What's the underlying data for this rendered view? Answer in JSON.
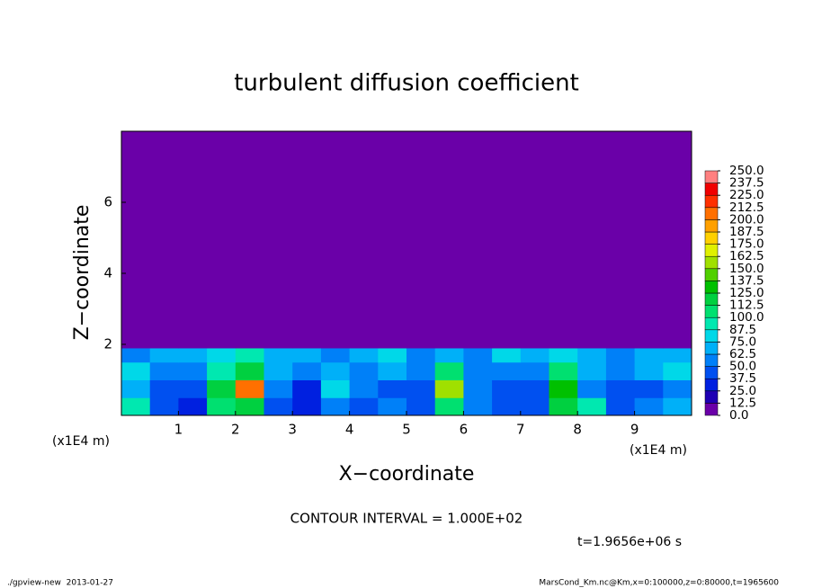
{
  "chart_data": {
    "type": "heatmap",
    "title": "turbulent diffusion coefficient",
    "xlabel": "X−coordinate",
    "ylabel": "Z−coordinate",
    "x_unit": "(x1E4 m)",
    "xlim": [
      0,
      10
    ],
    "ylim": [
      0,
      8
    ],
    "xticks": [
      1,
      2,
      3,
      4,
      5,
      6,
      7,
      8,
      9
    ],
    "yticks": [
      2,
      4,
      6
    ],
    "xbins": [
      0,
      0.5,
      1,
      1.5,
      2,
      2.5,
      3,
      3.5,
      4,
      4.5,
      5,
      5.5,
      6,
      6.5,
      7,
      7.5,
      8,
      8.5,
      9,
      9.5,
      10
    ],
    "ybins": [
      0,
      0.5,
      1,
      1.5,
      1.9,
      8
    ],
    "values": [
      [
        90,
        40,
        35,
        110,
        120,
        40,
        30,
        60,
        40,
        50,
        45,
        110,
        60,
        40,
        40,
        120,
        90,
        40,
        50,
        70
      ],
      [
        70,
        45,
        40,
        120,
        200,
        50,
        35,
        80,
        50,
        40,
        45,
        150,
        50,
        40,
        45,
        130,
        60,
        40,
        45,
        60
      ],
      [
        80,
        60,
        55,
        90,
        120,
        70,
        60,
        70,
        60,
        65,
        60,
        100,
        60,
        55,
        60,
        110,
        70,
        60,
        70,
        75
      ],
      [
        60,
        65,
        70,
        80,
        90,
        70,
        65,
        60,
        70,
        75,
        55,
        70,
        60,
        75,
        70,
        80,
        70,
        60,
        65,
        70
      ],
      [
        0,
        0,
        0,
        0,
        0,
        0,
        0,
        0,
        0,
        0,
        0,
        0,
        0,
        0,
        0,
        0,
        0,
        0,
        0,
        0
      ]
    ],
    "levels": [
      {
        "value": 0,
        "label": "0.0"
      },
      {
        "value": 12.5,
        "label": "12.5"
      },
      {
        "value": 25,
        "label": "25.0"
      },
      {
        "value": 37.5,
        "label": "37.5"
      },
      {
        "value": 50,
        "label": "50.0"
      },
      {
        "value": 62.5,
        "label": "62.5"
      },
      {
        "value": 75,
        "label": "75.0"
      },
      {
        "value": 87.5,
        "label": "87.5"
      },
      {
        "value": 100,
        "label": "100.0"
      },
      {
        "value": 112.5,
        "label": "112.5"
      },
      {
        "value": 125,
        "label": "125.0"
      },
      {
        "value": 137.5,
        "label": "137.5"
      },
      {
        "value": 150,
        "label": "150.0"
      },
      {
        "value": 162.5,
        "label": "162.5"
      },
      {
        "value": 175,
        "label": "175.0"
      },
      {
        "value": 187.5,
        "label": "187.5"
      },
      {
        "value": 200,
        "label": "200.0"
      },
      {
        "value": 212.5,
        "label": "212.5"
      },
      {
        "value": 225,
        "label": "225.0"
      },
      {
        "value": 237.5,
        "label": "237.5"
      },
      {
        "value": 250,
        "label": "250.0"
      }
    ],
    "colors": [
      "#6a00a8",
      "#1e00b4",
      "#0020e0",
      "#0050f0",
      "#0080f8",
      "#00b0f8",
      "#00d8e8",
      "#00e8b0",
      "#00e070",
      "#00d040",
      "#00c000",
      "#50d000",
      "#a0e000",
      "#e0f000",
      "#ffd000",
      "#ffa000",
      "#ff7000",
      "#ff3000",
      "#f00000",
      "#ff8080"
    ],
    "annotation": "CONTOUR INTERVAL = 1.000E+02",
    "time_label": "t=1.9656e+06 s",
    "footer_left": "./gpview-new  2013-01-27",
    "footer_right": "MarsCond_Km.nc@Km,x=0:100000,z=0:80000,t=1965600"
  }
}
